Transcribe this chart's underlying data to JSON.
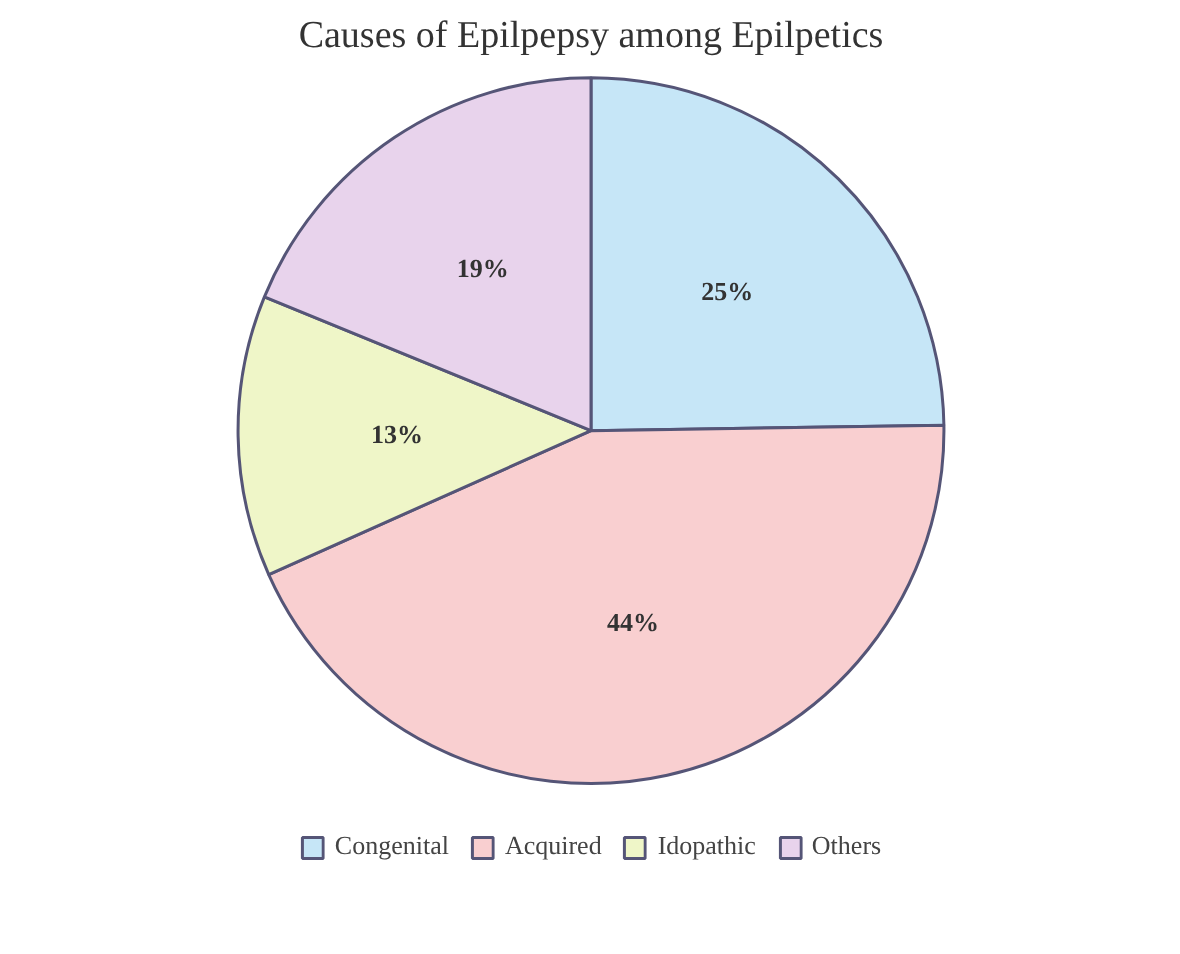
{
  "chart_data": {
    "type": "pie",
    "title": "Causes of Epilpepsy among Epilpetics",
    "categories": [
      "Congenital",
      "Acquired",
      "Idopathic",
      "Others"
    ],
    "values": [
      25,
      44,
      13,
      19
    ],
    "value_labels": [
      "25%",
      "44%",
      "13%",
      "19%"
    ],
    "colors": [
      "#c6e6f7",
      "#f9cfd0",
      "#eff6c8",
      "#e8d3ec"
    ],
    "legend": "bottom"
  }
}
